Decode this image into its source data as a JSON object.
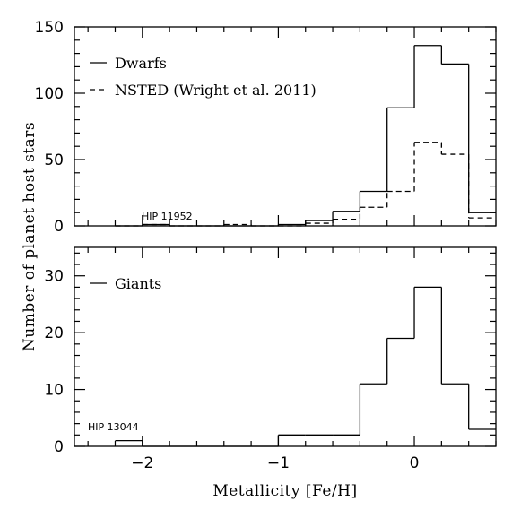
{
  "chart_data": [
    {
      "type": "histogram",
      "panel": "top",
      "xlim": [
        -2.5,
        0.6
      ],
      "ylim": [
        0,
        150
      ],
      "yticks": [
        0,
        50,
        100,
        150
      ],
      "ytick_labels": [
        "0",
        "50",
        "100",
        "150"
      ],
      "xtick_labels": [],
      "legend_position": "top-left",
      "series": [
        {
          "name": "Dwarfs",
          "style": "solid",
          "bin_edges": [
            -2.2,
            -2.0,
            -1.8,
            -1.6,
            -1.4,
            -1.2,
            -1.0,
            -0.8,
            -0.6,
            -0.4,
            -0.2,
            0.0,
            0.2,
            0.4,
            0.6
          ],
          "counts": [
            0,
            1,
            0,
            0,
            0,
            0,
            1,
            4,
            11,
            26,
            89,
            136,
            122,
            10
          ]
        },
        {
          "name": "NSTED (Wright et al. 2011)",
          "style": "dashed",
          "bin_edges": [
            -2.2,
            -2.0,
            -1.8,
            -1.6,
            -1.4,
            -1.2,
            -1.0,
            -0.8,
            -0.6,
            -0.4,
            -0.2,
            0.0,
            0.2,
            0.4,
            0.6
          ],
          "counts": [
            0,
            1,
            0,
            0,
            1,
            0,
            0,
            2,
            5,
            14,
            26,
            63,
            54,
            6
          ]
        }
      ],
      "annotations": [
        {
          "text": "HIP 11952",
          "x": -2.0,
          "y": 4
        }
      ]
    },
    {
      "type": "histogram",
      "panel": "bottom",
      "xlim": [
        -2.5,
        0.6
      ],
      "ylim": [
        0,
        35
      ],
      "yticks": [
        0,
        10,
        20,
        30
      ],
      "ytick_labels": [
        "0",
        "10",
        "20",
        "30"
      ],
      "xticks": [
        -2,
        -1,
        0
      ],
      "xtick_labels": [
        "−2",
        "−1",
        "0"
      ],
      "xlabel": "Metallicity [Fe/H]",
      "legend_position": "top-left",
      "series": [
        {
          "name": "Giants",
          "style": "solid",
          "bin_edges": [
            -2.2,
            -2.0,
            -1.8,
            -1.6,
            -1.4,
            -1.2,
            -1.0,
            -0.8,
            -0.6,
            -0.4,
            -0.2,
            0.0,
            0.2,
            0.4,
            0.6
          ],
          "counts": [
            1,
            0,
            0,
            0,
            0,
            0,
            2,
            2,
            2,
            11,
            19,
            28,
            11,
            3
          ]
        }
      ],
      "annotations": [
        {
          "text": "HIP 13044",
          "x": -2.2,
          "y": 2.5
        }
      ]
    }
  ],
  "shared_ylabel": "Number of planet host stars",
  "legend": {
    "dwarfs": "Dwarfs",
    "nsted": "NSTED (Wright et al. 2011)",
    "giants": "Giants"
  },
  "annotations": {
    "top": "HIP 11952",
    "bottom": "HIP 13044"
  },
  "labels": {
    "xlabel": "Metallicity [Fe/H]",
    "ylabel": "Number of planet host stars"
  }
}
